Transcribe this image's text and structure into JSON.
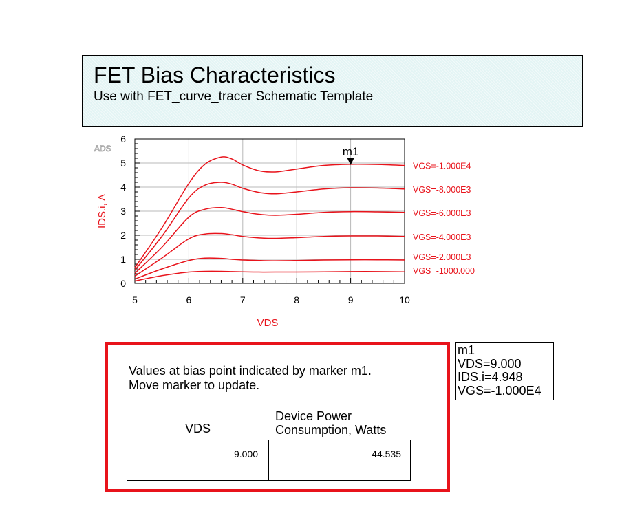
{
  "header": {
    "title": "FET Bias Characteristics",
    "subtitle": "Use with FET_curve_tracer Schematic Template"
  },
  "chart_data": {
    "type": "line",
    "watermark": "ADS",
    "xlabel": "VDS",
    "ylabel": "IDS.i, A",
    "xlim": [
      5,
      10
    ],
    "ylim": [
      0,
      6
    ],
    "x_ticks": [
      "5",
      "6",
      "7",
      "8",
      "9",
      "10"
    ],
    "y_ticks": [
      "0",
      "1",
      "2",
      "3",
      "4",
      "5",
      "6"
    ],
    "grid": true,
    "line_color": "#e8131b",
    "x": [
      5.0,
      5.5,
      6.0,
      6.3,
      6.6,
      6.8,
      7.0,
      7.3,
      7.6,
      8.0,
      8.5,
      9.0,
      9.5,
      10.0
    ],
    "series": [
      {
        "name": "VGS=-1.000E4",
        "values": [
          0.65,
          2.3,
          4.15,
          4.95,
          5.25,
          5.17,
          4.92,
          4.68,
          4.63,
          4.75,
          4.9,
          4.948,
          4.94,
          4.9
        ]
      },
      {
        "name": "VGS=-8.000E3",
        "values": [
          0.55,
          1.95,
          3.55,
          4.08,
          4.2,
          4.12,
          3.95,
          3.78,
          3.72,
          3.8,
          3.92,
          3.97,
          3.96,
          3.92
        ]
      },
      {
        "name": "VGS=-6.000E3",
        "values": [
          0.42,
          1.5,
          2.75,
          3.08,
          3.15,
          3.08,
          2.98,
          2.87,
          2.83,
          2.87,
          2.95,
          2.98,
          2.97,
          2.95
        ]
      },
      {
        "name": "VGS=-4.000E3",
        "values": [
          0.3,
          1.05,
          1.85,
          2.05,
          2.07,
          2.02,
          1.95,
          1.89,
          1.87,
          1.9,
          1.95,
          1.97,
          1.97,
          1.95
        ]
      },
      {
        "name": "VGS=-2.000E3",
        "values": [
          0.18,
          0.6,
          0.95,
          1.05,
          1.04,
          1.0,
          0.97,
          0.95,
          0.94,
          0.95,
          0.97,
          0.98,
          0.98,
          0.97
        ]
      },
      {
        "name": "VGS=-1000.000",
        "values": [
          0.1,
          0.32,
          0.47,
          0.5,
          0.5,
          0.49,
          0.48,
          0.47,
          0.47,
          0.47,
          0.48,
          0.49,
          0.49,
          0.48
        ]
      }
    ],
    "marker": {
      "label": "m1",
      "x": 9.0,
      "y": 4.948,
      "series": "VGS=-1.000E4"
    }
  },
  "marker_readout": {
    "name": "m1",
    "vds": "VDS=9.000",
    "ids": "IDS.i=4.948",
    "vgs": "VGS=-1.000E4"
  },
  "bias_panel": {
    "info_line1": "Values at bias point indicated by marker m1.",
    "info_line2": "Move marker to update.",
    "col_vds": "VDS",
    "col_power_line1": "Device Power",
    "col_power_line2": "Consumption, Watts",
    "vds_value": "9.000",
    "power_value": "44.535"
  }
}
